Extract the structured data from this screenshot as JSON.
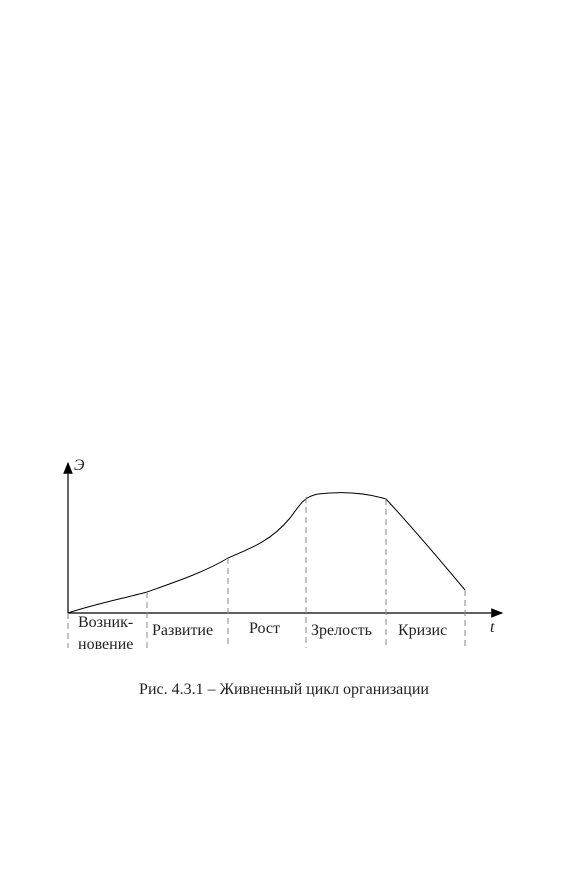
{
  "diagram": {
    "y_axis_label": "Э",
    "x_axis_label": "t",
    "stages": [
      {
        "lines": [
          "Возник-",
          "новение"
        ]
      },
      {
        "lines": [
          "Развитие"
        ]
      },
      {
        "lines": [
          "Рост"
        ]
      },
      {
        "lines": [
          "Зрелость"
        ]
      },
      {
        "lines": [
          "Кризис"
        ]
      }
    ],
    "caption": "Рис. 4.3.1 – Живненный цикл организации"
  }
}
